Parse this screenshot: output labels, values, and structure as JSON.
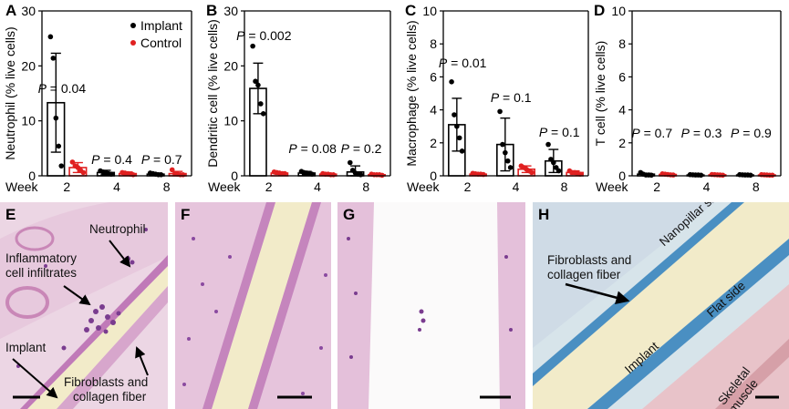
{
  "panels": [
    {
      "label": "A",
      "ylabel": "Neutrophil (% live cells)",
      "ylim": [
        0,
        30
      ],
      "yticks": [
        0,
        10,
        20,
        30
      ],
      "categories": [
        "2",
        "4",
        "8"
      ],
      "xprefix": "Week",
      "series": [
        {
          "name": "Implant",
          "color": "#000000",
          "means": [
            13.3,
            0.6,
            0.3
          ],
          "sd": [
            9.0,
            0.4,
            0.2
          ],
          "points": [
            [
              25.3,
              21.4,
              10.5,
              5.4,
              1.8
            ],
            [
              0.9,
              0.7,
              0.6,
              0.4,
              0.3
            ],
            [
              0.5,
              0.4,
              0.3,
              0.2,
              0.2
            ]
          ]
        },
        {
          "name": "Control",
          "color": "#e02020",
          "means": [
            1.5,
            0.4,
            0.4
          ],
          "sd": [
            0.9,
            0.3,
            0.4
          ],
          "points": [
            [
              2.5,
              1.8,
              1.5,
              1.0,
              0.6
            ],
            [
              0.6,
              0.5,
              0.4,
              0.3,
              0.2
            ],
            [
              1.1,
              0.4,
              0.3,
              0.2,
              0.2
            ]
          ]
        }
      ],
      "pvalues": [
        {
          "text": "P = 0.04",
          "cat": 0
        },
        {
          "text": "P = 0.4",
          "cat": 1
        },
        {
          "text": "P = 0.7",
          "cat": 2
        }
      ],
      "legend": true
    },
    {
      "label": "B",
      "ylabel": "Dendritic cell  (% live cells)",
      "ylim": [
        0,
        30
      ],
      "yticks": [
        0,
        10,
        20,
        30
      ],
      "categories": [
        "2",
        "4",
        "8"
      ],
      "xprefix": "Week",
      "series": [
        {
          "name": "Implant",
          "color": "#000000",
          "means": [
            15.9,
            0.5,
            0.7
          ],
          "sd": [
            4.6,
            0.3,
            1.1
          ],
          "points": [
            [
              23.6,
              17.2,
              16.5,
              13.1,
              11.3
            ],
            [
              0.8,
              0.6,
              0.5,
              0.4,
              0.3
            ],
            [
              2.4,
              1.0,
              0.5,
              0.3,
              0.2
            ]
          ]
        },
        {
          "name": "Control",
          "color": "#e02020",
          "means": [
            0.5,
            0.3,
            0.2
          ],
          "sd": [
            0.2,
            0.15,
            0.1
          ],
          "points": [
            [
              0.7,
              0.6,
              0.5,
              0.4,
              0.4
            ],
            [
              0.4,
              0.3,
              0.3,
              0.2,
              0.2
            ],
            [
              0.3,
              0.2,
              0.2,
              0.2,
              0.1
            ]
          ]
        }
      ],
      "pvalues": [
        {
          "text": "P = 0.002",
          "cat": 0
        },
        {
          "text": "P = 0.08",
          "cat": 1
        },
        {
          "text": "P = 0.2",
          "cat": 2
        }
      ],
      "legend": false
    },
    {
      "label": "C",
      "ylabel": "Macrophage (% live cells)",
      "ylim": [
        0,
        10
      ],
      "yticks": [
        0,
        2,
        4,
        6,
        8,
        10
      ],
      "categories": [
        "2",
        "4",
        "8"
      ],
      "xprefix": "Week",
      "series": [
        {
          "name": "Implant",
          "color": "#000000",
          "means": [
            3.1,
            1.9,
            0.9
          ],
          "sd": [
            1.6,
            1.6,
            0.7
          ],
          "points": [
            [
              5.7,
              3.7,
              3.0,
              2.3,
              1.5
            ],
            [
              3.9,
              1.9,
              1.4,
              0.9,
              0.5
            ],
            [
              1.9,
              1.0,
              0.8,
              0.5,
              0.3
            ]
          ]
        },
        {
          "name": "Control",
          "color": "#e02020",
          "means": [
            0.1,
            0.4,
            0.2
          ],
          "sd": [
            0.05,
            0.2,
            0.1
          ],
          "points": [
            [
              0.15,
              0.12,
              0.1,
              0.1,
              0.08
            ],
            [
              0.6,
              0.5,
              0.4,
              0.3,
              0.2
            ],
            [
              0.3,
              0.2,
              0.2,
              0.15,
              0.1
            ]
          ]
        }
      ],
      "pvalues": [
        {
          "text": "P = 0.01",
          "cat": 0
        },
        {
          "text": "P = 0.1",
          "cat": 1
        },
        {
          "text": "P = 0.1",
          "cat": 2
        }
      ],
      "legend": false
    },
    {
      "label": "D",
      "ylabel": "T cell (% live cells)",
      "ylim": [
        0,
        10
      ],
      "yticks": [
        0,
        2,
        4,
        6,
        8,
        10
      ],
      "categories": [
        "2",
        "4",
        "8"
      ],
      "xprefix": "Week",
      "series": [
        {
          "name": "Implant",
          "color": "#000000",
          "means": [
            0.1,
            0.05,
            0.05
          ],
          "sd": [
            0.05,
            0.02,
            0.02
          ],
          "points": [
            [
              0.2,
              0.1,
              0.05,
              0.05,
              0.04
            ],
            [
              0.07,
              0.06,
              0.05,
              0.05,
              0.04
            ],
            [
              0.07,
              0.06,
              0.05,
              0.05,
              0.04
            ]
          ]
        },
        {
          "name": "Control",
          "color": "#e02020",
          "means": [
            0.08,
            0.06,
            0.05
          ],
          "sd": [
            0.04,
            0.02,
            0.02
          ],
          "points": [
            [
              0.12,
              0.1,
              0.08,
              0.06,
              0.05
            ],
            [
              0.08,
              0.07,
              0.06,
              0.05,
              0.04
            ],
            [
              0.07,
              0.06,
              0.05,
              0.04,
              0.04
            ]
          ]
        }
      ],
      "pvalues": [
        {
          "text": "P = 0.7",
          "cat": 0
        },
        {
          "text": "P = 0.3",
          "cat": 1
        },
        {
          "text": "P = 0.9",
          "cat": 2
        }
      ],
      "legend": false
    }
  ],
  "histology": {
    "E": {
      "label": "E",
      "annotations": {
        "neutrophil": "Neutrophil",
        "infiltrates_1": "Inflammatory",
        "infiltrates_2": "cell infiltrates",
        "implant": "Implant",
        "fibro_1": "Fibroblasts and",
        "fibro_2": "collagen fiber"
      }
    },
    "F": {
      "label": "F"
    },
    "G": {
      "label": "G"
    },
    "H": {
      "label": "H",
      "annotations": {
        "fibro_1": "Fibroblasts and",
        "fibro_2": "collagen fiber",
        "nanopillar": "Nanopillar side",
        "flat": "Flat side",
        "implant": "Implant",
        "muscle": "Skeletal muscle"
      }
    }
  }
}
